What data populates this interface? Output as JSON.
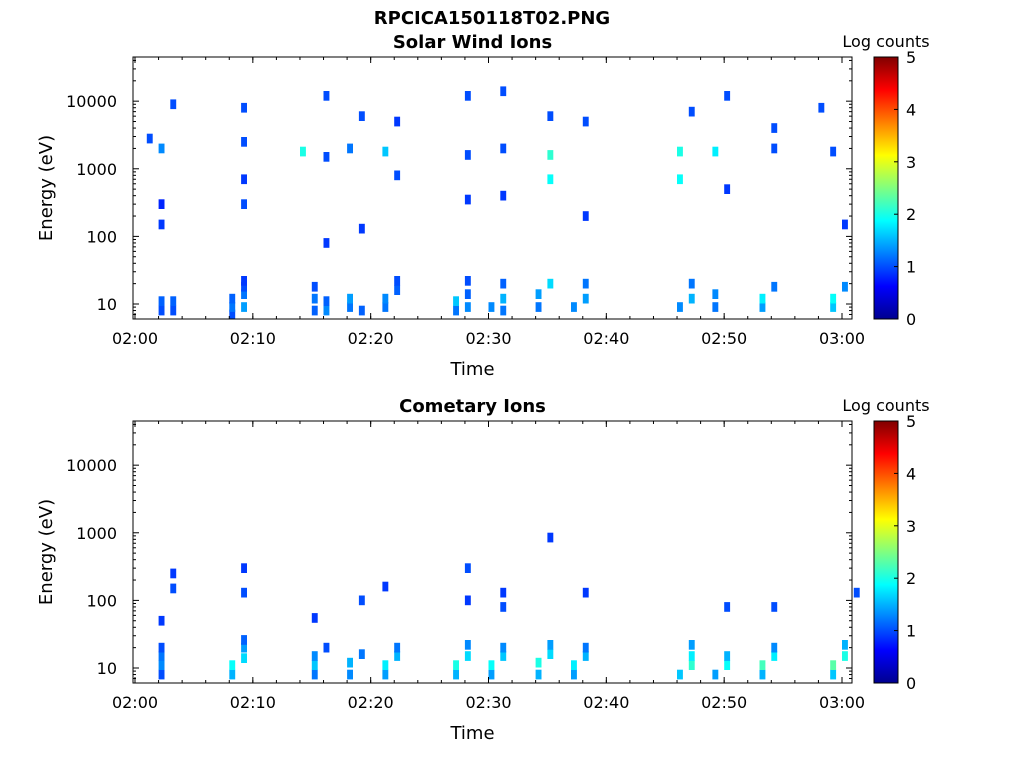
{
  "figure_title": "RPCICA150118T02.PNG",
  "colormap_stops": [
    "#00008f",
    "#0000ff",
    "#0080ff",
    "#00ffff",
    "#80ff80",
    "#ffff00",
    "#ff8000",
    "#ff0000",
    "#800000"
  ],
  "chart_data": [
    {
      "type": "heatmap",
      "title": "Solar Wind Ions",
      "xlabel": "Time",
      "ylabel": "Energy (eV)",
      "y_scale": "log",
      "xlim": [
        "02:00",
        "03:00"
      ],
      "x_ticks": [
        "02:00",
        "02:10",
        "02:20",
        "02:30",
        "02:40",
        "02:50",
        "03:00"
      ],
      "ylim": [
        6,
        45000
      ],
      "y_ticks": [
        {
          "value": 10,
          "label": "10"
        },
        {
          "value": 100,
          "label": "100"
        },
        {
          "value": 1000,
          "label": "1000"
        },
        {
          "value": 10000,
          "label": "10000"
        }
      ],
      "colorbar": {
        "label": "Log counts",
        "range": [
          0,
          5
        ],
        "ticks": [
          "0",
          "1",
          "2",
          "3",
          "4",
          "5"
        ]
      },
      "cells": [
        [
          "02:02",
          8,
          1.0
        ],
        [
          "02:02",
          11,
          1.1
        ],
        [
          "02:03",
          8,
          1.0
        ],
        [
          "02:03",
          11,
          1.1
        ],
        [
          "02:01",
          2800,
          1.0
        ],
        [
          "02:02",
          2000,
          1.3
        ],
        [
          "02:02",
          300,
          0.8
        ],
        [
          "02:03",
          9000,
          1.0
        ],
        [
          "02:02",
          150,
          0.9
        ],
        [
          "02:08",
          7,
          1.0
        ],
        [
          "02:08",
          9,
          1.2
        ],
        [
          "02:08",
          12,
          1.1
        ],
        [
          "02:09",
          9,
          1.4
        ],
        [
          "02:09",
          14,
          1.2
        ],
        [
          "02:09",
          18,
          1.0
        ],
        [
          "02:09",
          22,
          0.9
        ],
        [
          "02:09",
          8000,
          1.0
        ],
        [
          "02:09",
          2500,
          1.0
        ],
        [
          "02:09",
          700,
          0.9
        ],
        [
          "02:09",
          300,
          1.0
        ],
        [
          "02:15",
          8,
          1.1
        ],
        [
          "02:15",
          12,
          1.2
        ],
        [
          "02:15",
          18,
          1.0
        ],
        [
          "02:16",
          8,
          1.3
        ],
        [
          "02:16",
          11,
          1.1
        ],
        [
          "02:14",
          1800,
          2.0
        ],
        [
          "02:16",
          12000,
          1.0
        ],
        [
          "02:16",
          1500,
          1.0
        ],
        [
          "02:16",
          80,
          0.9
        ],
        [
          "02:18",
          9,
          1.2
        ],
        [
          "02:18",
          12,
          1.4
        ],
        [
          "02:19",
          8,
          1.1
        ],
        [
          "02:18",
          2000,
          1.2
        ],
        [
          "02:19",
          6000,
          1.0
        ],
        [
          "02:19",
          130,
          0.9
        ],
        [
          "02:21",
          9,
          1.2
        ],
        [
          "02:21",
          12,
          1.3
        ],
        [
          "02:22",
          16,
          1.1
        ],
        [
          "02:22",
          22,
          1.0
        ],
        [
          "02:21",
          1800,
          1.6
        ],
        [
          "02:22",
          800,
          1.0
        ],
        [
          "02:22",
          5000,
          0.9
        ],
        [
          "02:27",
          8,
          1.2
        ],
        [
          "02:27",
          11,
          1.6
        ],
        [
          "02:28",
          9,
          1.3
        ],
        [
          "02:28",
          14,
          1.1
        ],
        [
          "02:28",
          22,
          1.0
        ],
        [
          "02:28",
          12000,
          1.0
        ],
        [
          "02:28",
          1600,
          1.0
        ],
        [
          "02:28",
          350,
          0.9
        ],
        [
          "02:30",
          9,
          1.3
        ],
        [
          "02:31",
          12,
          1.5
        ],
        [
          "02:31",
          8,
          1.2
        ],
        [
          "02:31",
          20,
          1.1
        ],
        [
          "02:31",
          14000,
          1.0
        ],
        [
          "02:31",
          2000,
          1.0
        ],
        [
          "02:31",
          400,
          0.9
        ],
        [
          "02:34",
          9,
          1.2
        ],
        [
          "02:34",
          14,
          1.4
        ],
        [
          "02:35",
          20,
          1.7
        ],
        [
          "02:35",
          1600,
          2.1
        ],
        [
          "02:35",
          700,
          1.9
        ],
        [
          "02:35",
          6000,
          1.0
        ],
        [
          "02:37",
          9,
          1.3
        ],
        [
          "02:38",
          12,
          1.4
        ],
        [
          "02:38",
          20,
          1.2
        ],
        [
          "02:38",
          5000,
          1.0
        ],
        [
          "02:38",
          200,
          0.9
        ],
        [
          "02:46",
          9,
          1.3
        ],
        [
          "02:47",
          12,
          1.5
        ],
        [
          "02:47",
          20,
          1.2
        ],
        [
          "02:46",
          1800,
          2.0
        ],
        [
          "02:46",
          700,
          1.9
        ],
        [
          "02:47",
          7000,
          1.0
        ],
        [
          "02:49",
          9,
          1.2
        ],
        [
          "02:49",
          14,
          1.3
        ],
        [
          "02:49",
          1800,
          1.8
        ],
        [
          "02:50",
          12000,
          1.0
        ],
        [
          "02:50",
          500,
          0.9
        ],
        [
          "02:53",
          9,
          1.4
        ],
        [
          "02:53",
          12,
          1.8
        ],
        [
          "02:54",
          18,
          1.2
        ],
        [
          "02:54",
          2000,
          1.0
        ],
        [
          "02:54",
          4000,
          1.0
        ],
        [
          "02:59",
          9,
          1.6
        ],
        [
          "02:59",
          12,
          1.9
        ],
        [
          "03:00",
          18,
          1.3
        ],
        [
          "02:58",
          8000,
          1.0
        ],
        [
          "02:59",
          1800,
          1.0
        ],
        [
          "03:00",
          150,
          0.9
        ]
      ]
    },
    {
      "type": "heatmap",
      "title": "Cometary Ions",
      "xlabel": "Time",
      "ylabel": "Energy (eV)",
      "y_scale": "log",
      "xlim": [
        "02:00",
        "03:00"
      ],
      "x_ticks": [
        "02:00",
        "02:10",
        "02:20",
        "02:30",
        "02:40",
        "02:50",
        "03:00"
      ],
      "ylim": [
        6,
        45000
      ],
      "y_ticks": [
        {
          "value": 10,
          "label": "10"
        },
        {
          "value": 100,
          "label": "100"
        },
        {
          "value": 1000,
          "label": "1000"
        },
        {
          "value": 10000,
          "label": "10000"
        }
      ],
      "colorbar": {
        "label": "Log counts",
        "range": [
          0,
          5
        ],
        "ticks": [
          "0",
          "1",
          "2",
          "3",
          "4",
          "5"
        ]
      },
      "cells": [
        [
          "02:02",
          8,
          1.0
        ],
        [
          "02:02",
          11,
          1.3
        ],
        [
          "02:02",
          15,
          1.2
        ],
        [
          "02:02",
          20,
          1.0
        ],
        [
          "02:02",
          50,
          0.9
        ],
        [
          "02:03",
          150,
          1.0
        ],
        [
          "02:03",
          250,
          0.9
        ],
        [
          "02:08",
          8,
          1.5
        ],
        [
          "02:08",
          11,
          1.9
        ],
        [
          "02:09",
          14,
          1.7
        ],
        [
          "02:09",
          20,
          1.4
        ],
        [
          "02:09",
          26,
          1.1
        ],
        [
          "02:09",
          130,
          1.0
        ],
        [
          "02:09",
          300,
          0.9
        ],
        [
          "02:15",
          8,
          1.2
        ],
        [
          "02:15",
          11,
          1.6
        ],
        [
          "02:15",
          15,
          1.3
        ],
        [
          "02:16",
          20,
          1.0
        ],
        [
          "02:15",
          55,
          0.9
        ],
        [
          "02:18",
          8,
          1.3
        ],
        [
          "02:18",
          12,
          1.5
        ],
        [
          "02:19",
          16,
          1.2
        ],
        [
          "02:19",
          100,
          1.0
        ],
        [
          "02:21",
          8,
          1.4
        ],
        [
          "02:21",
          11,
          1.8
        ],
        [
          "02:22",
          15,
          1.5
        ],
        [
          "02:22",
          20,
          1.2
        ],
        [
          "02:21",
          160,
          0.9
        ],
        [
          "02:27",
          8,
          1.5
        ],
        [
          "02:27",
          11,
          2.0
        ],
        [
          "02:28",
          15,
          1.7
        ],
        [
          "02:28",
          22,
          1.3
        ],
        [
          "02:28",
          300,
          1.0
        ],
        [
          "02:28",
          100,
          0.9
        ],
        [
          "02:30",
          8,
          1.4
        ],
        [
          "02:30",
          11,
          1.9
        ],
        [
          "02:31",
          15,
          1.6
        ],
        [
          "02:31",
          20,
          1.3
        ],
        [
          "02:31",
          80,
          1.0
        ],
        [
          "02:31",
          130,
          0.9
        ],
        [
          "02:34",
          8,
          1.5
        ],
        [
          "02:34",
          12,
          2.0
        ],
        [
          "02:35",
          16,
          1.7
        ],
        [
          "02:35",
          22,
          1.4
        ],
        [
          "02:35",
          850,
          0.9
        ],
        [
          "02:37",
          8,
          1.4
        ],
        [
          "02:37",
          11,
          1.8
        ],
        [
          "02:38",
          15,
          1.5
        ],
        [
          "02:38",
          20,
          1.2
        ],
        [
          "02:38",
          130,
          0.9
        ],
        [
          "02:46",
          8,
          1.6
        ],
        [
          "02:47",
          11,
          2.1
        ],
        [
          "02:47",
          15,
          1.8
        ],
        [
          "02:47",
          22,
          1.4
        ],
        [
          "02:49",
          8,
          1.4
        ],
        [
          "02:50",
          11,
          1.9
        ],
        [
          "02:50",
          15,
          1.5
        ],
        [
          "02:50",
          80,
          1.0
        ],
        [
          "02:53",
          8,
          1.5
        ],
        [
          "02:53",
          11,
          2.2
        ],
        [
          "02:54",
          15,
          1.8
        ],
        [
          "02:54",
          20,
          1.3
        ],
        [
          "02:54",
          80,
          1.0
        ],
        [
          "02:59",
          8,
          1.6
        ],
        [
          "02:59",
          11,
          2.3
        ],
        [
          "03:00",
          15,
          2.0
        ],
        [
          "03:00",
          22,
          1.5
        ],
        [
          "03:01",
          130,
          1.0
        ]
      ]
    }
  ]
}
